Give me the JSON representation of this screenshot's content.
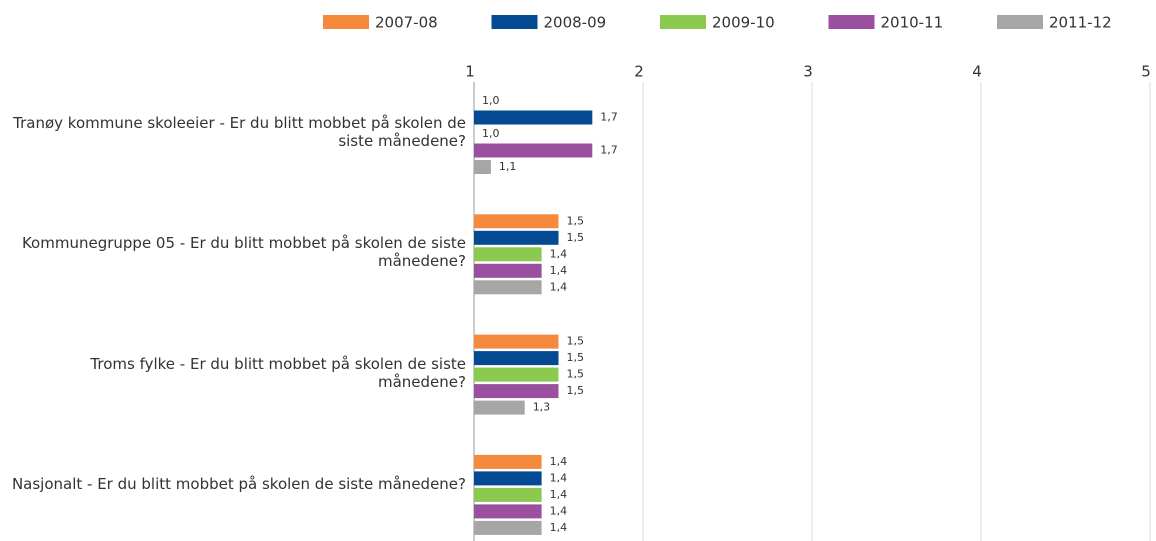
{
  "chart_data": {
    "type": "bar",
    "orientation": "horizontal",
    "categories": [
      "Tranøy kommune skoleeier - Er du blitt mobbet på skolen de siste månedene?",
      "Kommunegruppe 05 - Er du blitt mobbet på skolen de siste månedene?",
      "Troms fylke - Er du blitt mobbet på skolen de siste månedene?",
      "Nasjonalt - Er du blitt mobbet på skolen de siste månedene?"
    ],
    "series": [
      {
        "name": "2007-08",
        "color": "#f58a3d",
        "values": [
          1.0,
          1.5,
          1.5,
          1.4
        ],
        "value_labels": [
          "1,0",
          "1,5",
          "1,5",
          "1,4"
        ]
      },
      {
        "name": "2008-09",
        "color": "#034a93",
        "values": [
          1.7,
          1.5,
          1.5,
          1.4
        ],
        "value_labels": [
          "1,7",
          "1,5",
          "1,5",
          "1,4"
        ]
      },
      {
        "name": "2009-10",
        "color": "#8cc951",
        "values": [
          1.0,
          1.4,
          1.5,
          1.4
        ],
        "value_labels": [
          "1,0",
          "1,4",
          "1,5",
          "1,4"
        ]
      },
      {
        "name": "2010-11",
        "color": "#9b4f9f",
        "values": [
          1.7,
          1.4,
          1.5,
          1.4
        ],
        "value_labels": [
          "1,7",
          "1,4",
          "1,5",
          "1,4"
        ]
      },
      {
        "name": "2011-12",
        "color": "#a6a6a6",
        "values": [
          1.1,
          1.4,
          1.3,
          1.4
        ],
        "value_labels": [
          "1,1",
          "1,4",
          "1,3",
          "1,4"
        ]
      }
    ],
    "xlim": [
      1,
      5
    ],
    "xticks": [
      1,
      2,
      3,
      4,
      5
    ],
    "grid": true,
    "legend": "top"
  }
}
